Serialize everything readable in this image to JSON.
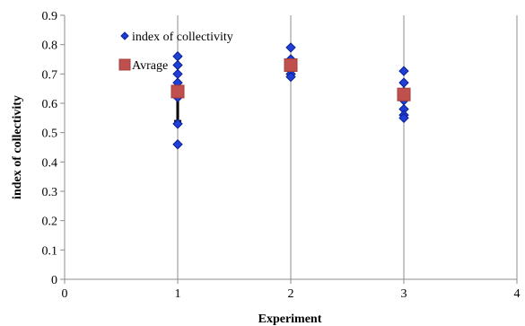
{
  "chart_data": {
    "type": "scatter",
    "xlabel": "Experiment",
    "ylabel": "index of collectivity",
    "xlim": [
      0,
      4
    ],
    "ylim": [
      0,
      0.9
    ],
    "x_ticks": [
      "0",
      "1",
      "2",
      "3",
      "4"
    ],
    "y_ticks": [
      "0",
      "0.1",
      "0.2",
      "0.3",
      "0.4",
      "0.5",
      "0.6",
      "0.7",
      "0.8",
      "0.9"
    ],
    "vertical_gridlines": true,
    "legend_position": "top-left",
    "series": [
      {
        "name": "index of collectivity",
        "marker": "diamond",
        "color": "#1f3fd6",
        "points": [
          {
            "x": 1,
            "y": 0.76
          },
          {
            "x": 1,
            "y": 0.73
          },
          {
            "x": 1,
            "y": 0.7
          },
          {
            "x": 1,
            "y": 0.67
          },
          {
            "x": 1,
            "y": 0.64
          },
          {
            "x": 1,
            "y": 0.62
          },
          {
            "x": 1,
            "y": 0.53
          },
          {
            "x": 1,
            "y": 0.46
          },
          {
            "x": 2,
            "y": 0.79
          },
          {
            "x": 2,
            "y": 0.75
          },
          {
            "x": 2,
            "y": 0.72
          },
          {
            "x": 2,
            "y": 0.7
          },
          {
            "x": 2,
            "y": 0.69
          },
          {
            "x": 3,
            "y": 0.71
          },
          {
            "x": 3,
            "y": 0.67
          },
          {
            "x": 3,
            "y": 0.64
          },
          {
            "x": 3,
            "y": 0.61
          },
          {
            "x": 3,
            "y": 0.58
          },
          {
            "x": 3,
            "y": 0.56
          },
          {
            "x": 3,
            "y": 0.55
          }
        ]
      },
      {
        "name": "Avrage",
        "marker": "square",
        "color": "#c0504d",
        "points": [
          {
            "x": 1,
            "y": 0.64
          },
          {
            "x": 2,
            "y": 0.73
          },
          {
            "x": 3,
            "y": 0.63
          }
        ]
      }
    ],
    "error_bar": {
      "x": 1,
      "y_from": 0.62,
      "y_to": 0.54,
      "color": "#000000"
    }
  }
}
